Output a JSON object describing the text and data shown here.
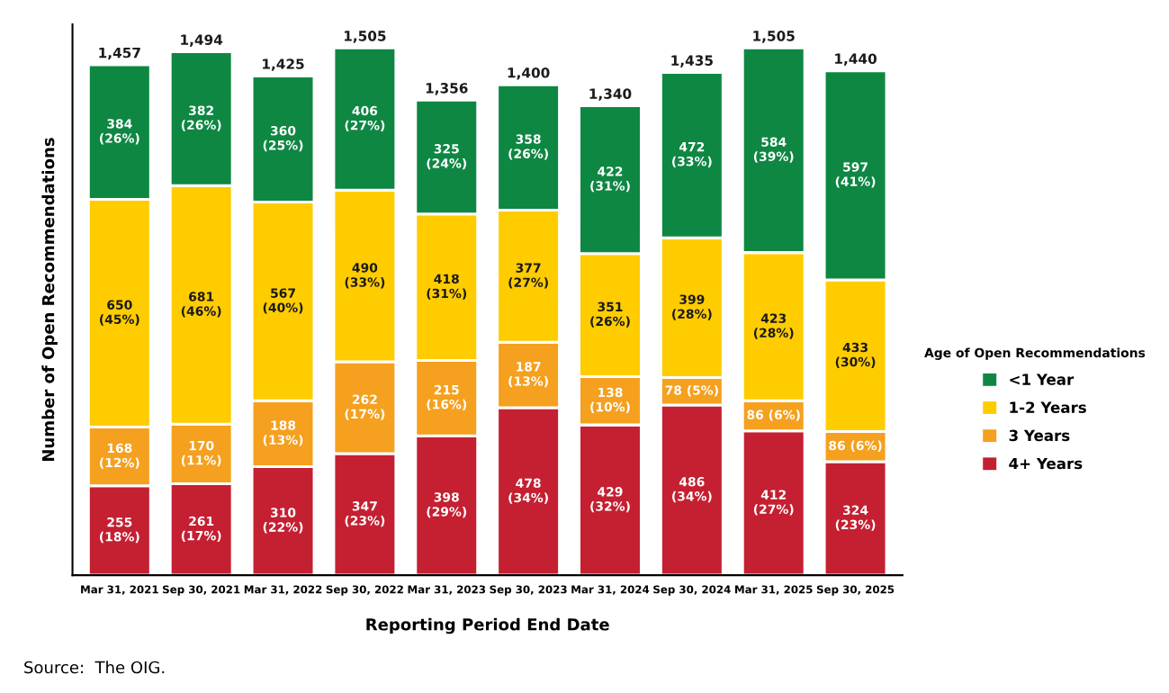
{
  "chart_data": {
    "type": "bar",
    "stacked": true,
    "xlabel": "Reporting Period End Date",
    "ylabel": "Number of Open Recommendations",
    "legend_title": "Age of Open Recommendations",
    "legend": "right",
    "tick_labels": "x",
    "grid": false,
    "categories": [
      "Mar 31, 2021",
      "Sep 30, 2021",
      "Mar 31, 2022",
      "Sep 30, 2022",
      "Mar 31, 2023",
      "Sep 30, 2023",
      "Mar 31, 2024",
      "Sep 30, 2024",
      "Mar 31, 2025",
      "Sep 30, 2025"
    ],
    "series": [
      {
        "name": "4+ Years",
        "color": "#c42032",
        "values": [
          255,
          261,
          310,
          347,
          398,
          478,
          429,
          486,
          412,
          324
        ],
        "value_labels": [
          "255\n(18%)",
          "261\n(17%)",
          "310\n(22%)",
          "347\n(23%)",
          "398\n(29%)",
          "478\n(34%)",
          "429\n(32%)",
          "486\n(34%)",
          "412\n(27%)",
          "324\n(23%)"
        ]
      },
      {
        "name": "3 Years",
        "color": "#f5a01e",
        "values": [
          168,
          170,
          188,
          262,
          215,
          187,
          138,
          78,
          86,
          86
        ],
        "value_labels": [
          "168\n(12%)",
          "170\n(11%)",
          "188\n(13%)",
          "262\n(17%)",
          "215\n(16%)",
          "187\n(13%)",
          "138\n(10%)",
          "78 (5%)",
          "86 (6%)",
          "86 (6%)"
        ]
      },
      {
        "name": "1-2 Years",
        "color": "#ffcc00",
        "values": [
          650,
          681,
          567,
          490,
          418,
          377,
          351,
          399,
          423,
          433
        ],
        "value_labels": [
          "650\n(45%)",
          "681\n(46%)",
          "567\n(40%)",
          "490\n(33%)",
          "418\n(31%)",
          "377\n(27%)",
          "351\n(26%)",
          "399\n(28%)",
          "423\n(28%)",
          "433\n(30%)"
        ]
      },
      {
        "name": "<1 Year",
        "color": "#0e8743",
        "values": [
          384,
          382,
          360,
          406,
          325,
          358,
          422,
          472,
          584,
          597
        ],
        "value_labels": [
          "384\n(26%)",
          "382\n(26%)",
          "360\n(25%)",
          "406\n(27%)",
          "325\n(24%)",
          "358\n(26%)",
          "422\n(31%)",
          "472\n(33%)",
          "584\n(39%)",
          "597\n(41%)"
        ]
      }
    ],
    "totals": [
      "1,457",
      "1,494",
      "1,425",
      "1,505",
      "1,356",
      "1,400",
      "1,340",
      "1,435",
      "1,505",
      "1,440"
    ],
    "annotations": [
      "Source:  The OIG."
    ]
  }
}
